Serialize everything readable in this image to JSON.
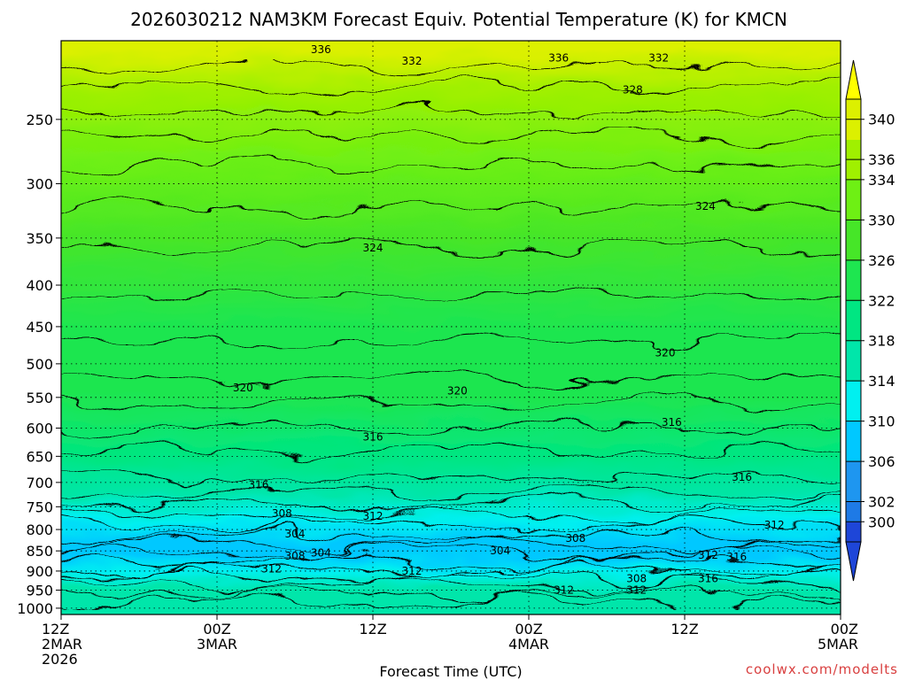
{
  "chart_data": {
    "type": "heatmap",
    "title": "2026030212 NAM3KM Forecast Equiv. Potential Temperature (K) for KMCN",
    "xlabel": "Forecast Time (UTC)",
    "ylabel": "",
    "y_scale": "log",
    "y_inverted": true,
    "ylim": [
      1018,
      200
    ],
    "y_ticks": [
      250,
      300,
      350,
      400,
      450,
      500,
      550,
      600,
      650,
      700,
      750,
      800,
      850,
      900,
      950,
      1000
    ],
    "x_range_hours": [
      0,
      60
    ],
    "x_ticks": [
      {
        "hour": 0,
        "lines": [
          "12Z",
          "2MAR",
          "2026"
        ]
      },
      {
        "hour": 12,
        "lines": [
          "00Z",
          "3MAR"
        ]
      },
      {
        "hour": 24,
        "lines": [
          "12Z"
        ]
      },
      {
        "hour": 36,
        "lines": [
          "00Z",
          "4MAR"
        ]
      },
      {
        "hour": 48,
        "lines": [
          "12Z"
        ]
      },
      {
        "hour": 60,
        "lines": [
          "00Z",
          "5MAR"
        ]
      }
    ],
    "grid": true,
    "colorbar": {
      "placement": "right",
      "min": 298,
      "max": 342,
      "ticks": [
        300,
        302,
        306,
        310,
        314,
        318,
        322,
        326,
        330,
        334,
        336,
        340
      ],
      "stops": [
        {
          "value": 298,
          "color": "#1e46d8"
        },
        {
          "value": 300,
          "color": "#1e7ae6"
        },
        {
          "value": 302,
          "color": "#1e96f0"
        },
        {
          "value": 306,
          "color": "#00c8ff"
        },
        {
          "value": 310,
          "color": "#00f0f0"
        },
        {
          "value": 314,
          "color": "#00e6aa"
        },
        {
          "value": 318,
          "color": "#00e682"
        },
        {
          "value": 322,
          "color": "#1ee650"
        },
        {
          "value": 326,
          "color": "#46e628"
        },
        {
          "value": 330,
          "color": "#6ef014"
        },
        {
          "value": 334,
          "color": "#a0f000"
        },
        {
          "value": 338,
          "color": "#dcf000"
        },
        {
          "value": 342,
          "color": "#ffff00"
        }
      ]
    },
    "surface_color": "#a0522d",
    "contour_labels": [
      {
        "value": "336",
        "hour": 20,
        "p": 205
      },
      {
        "value": "336",
        "hour": 38.3,
        "p": 210
      },
      {
        "value": "332",
        "hour": 27,
        "p": 212
      },
      {
        "value": "332",
        "hour": 46,
        "p": 210
      },
      {
        "value": "328",
        "hour": 44,
        "p": 230
      },
      {
        "value": "324",
        "hour": 49.6,
        "p": 320
      },
      {
        "value": "324",
        "hour": 24,
        "p": 360
      },
      {
        "value": "320",
        "hour": 46.5,
        "p": 485
      },
      {
        "value": "320",
        "hour": 14,
        "p": 535
      },
      {
        "value": "320",
        "hour": 30.5,
        "p": 540
      },
      {
        "value": "316",
        "hour": 47,
        "p": 590
      },
      {
        "value": "316",
        "hour": 24,
        "p": 615
      },
      {
        "value": "316",
        "hour": 15.2,
        "p": 705
      },
      {
        "value": "316",
        "hour": 52.4,
        "p": 690
      },
      {
        "value": "308",
        "hour": 17,
        "p": 765
      },
      {
        "value": "312",
        "hour": 24,
        "p": 770
      },
      {
        "value": "304",
        "hour": 18,
        "p": 810
      },
      {
        "value": "312",
        "hour": 54.9,
        "p": 790
      },
      {
        "value": "308",
        "hour": 39.6,
        "p": 820
      },
      {
        "value": "304",
        "hour": 20,
        "p": 855
      },
      {
        "value": "308",
        "hour": 18,
        "p": 862
      },
      {
        "value": "304",
        "hour": 33.8,
        "p": 850
      },
      {
        "value": "312",
        "hour": 49.8,
        "p": 860
      },
      {
        "value": "316",
        "hour": 52,
        "p": 865
      },
      {
        "value": "312",
        "hour": 16.2,
        "p": 895
      },
      {
        "value": "312",
        "hour": 27,
        "p": 900
      },
      {
        "value": "308",
        "hour": 44.3,
        "p": 920
      },
      {
        "value": "316",
        "hour": 49.8,
        "p": 920
      },
      {
        "value": "312",
        "hour": 38.7,
        "p": 950
      },
      {
        "value": "312",
        "hour": 44.3,
        "p": 950
      }
    ]
  },
  "watermark": "coolwx.com/modelts"
}
